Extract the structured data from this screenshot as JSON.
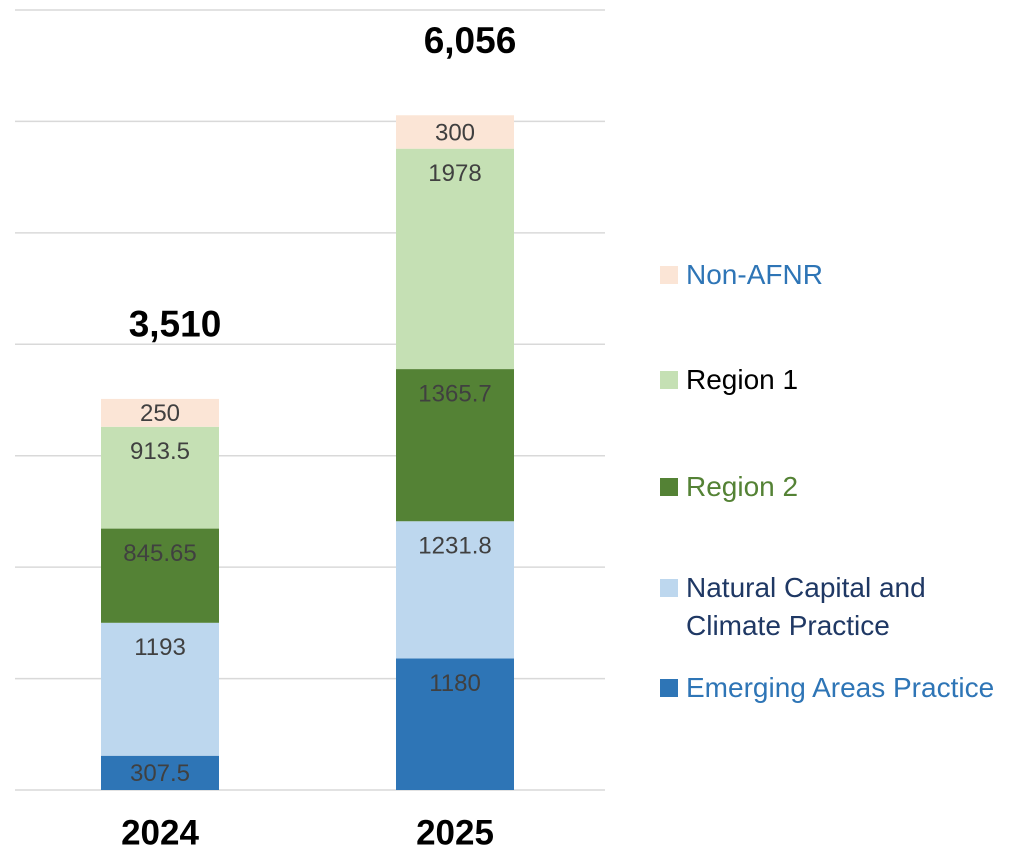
{
  "chart_data": {
    "type": "stacked-bar",
    "categories": [
      "2024",
      "2025"
    ],
    "series": [
      {
        "name": "Emerging Areas Practice",
        "color": "#2e75b6",
        "label_color": "#2e75b6",
        "values": [
          307.5,
          1180
        ]
      },
      {
        "name": "Natural Capital and Climate Practice",
        "color": "#bdd7ee",
        "label_color": "#1f3864",
        "values": [
          1193,
          1231.8
        ]
      },
      {
        "name": "Region 2",
        "color": "#548235",
        "label_color": "#548235",
        "values": [
          845.65,
          1365.7
        ]
      },
      {
        "name": "Region 1",
        "color": "#c5e0b4",
        "label_color": "#000000",
        "values": [
          913.5,
          1978
        ]
      },
      {
        "name": "Non-AFNR",
        "color": "#fbe5d6",
        "label_color": "#2e75b6",
        "values": [
          250,
          300
        ]
      }
    ],
    "totals": [
      3510,
      6056
    ],
    "total_labels": [
      "3,510",
      "6,056"
    ],
    "ylim": [
      0,
      7000
    ],
    "yticks": [
      0,
      1000,
      2000,
      3000,
      4000,
      5000,
      6000,
      7000
    ],
    "grid": true
  }
}
